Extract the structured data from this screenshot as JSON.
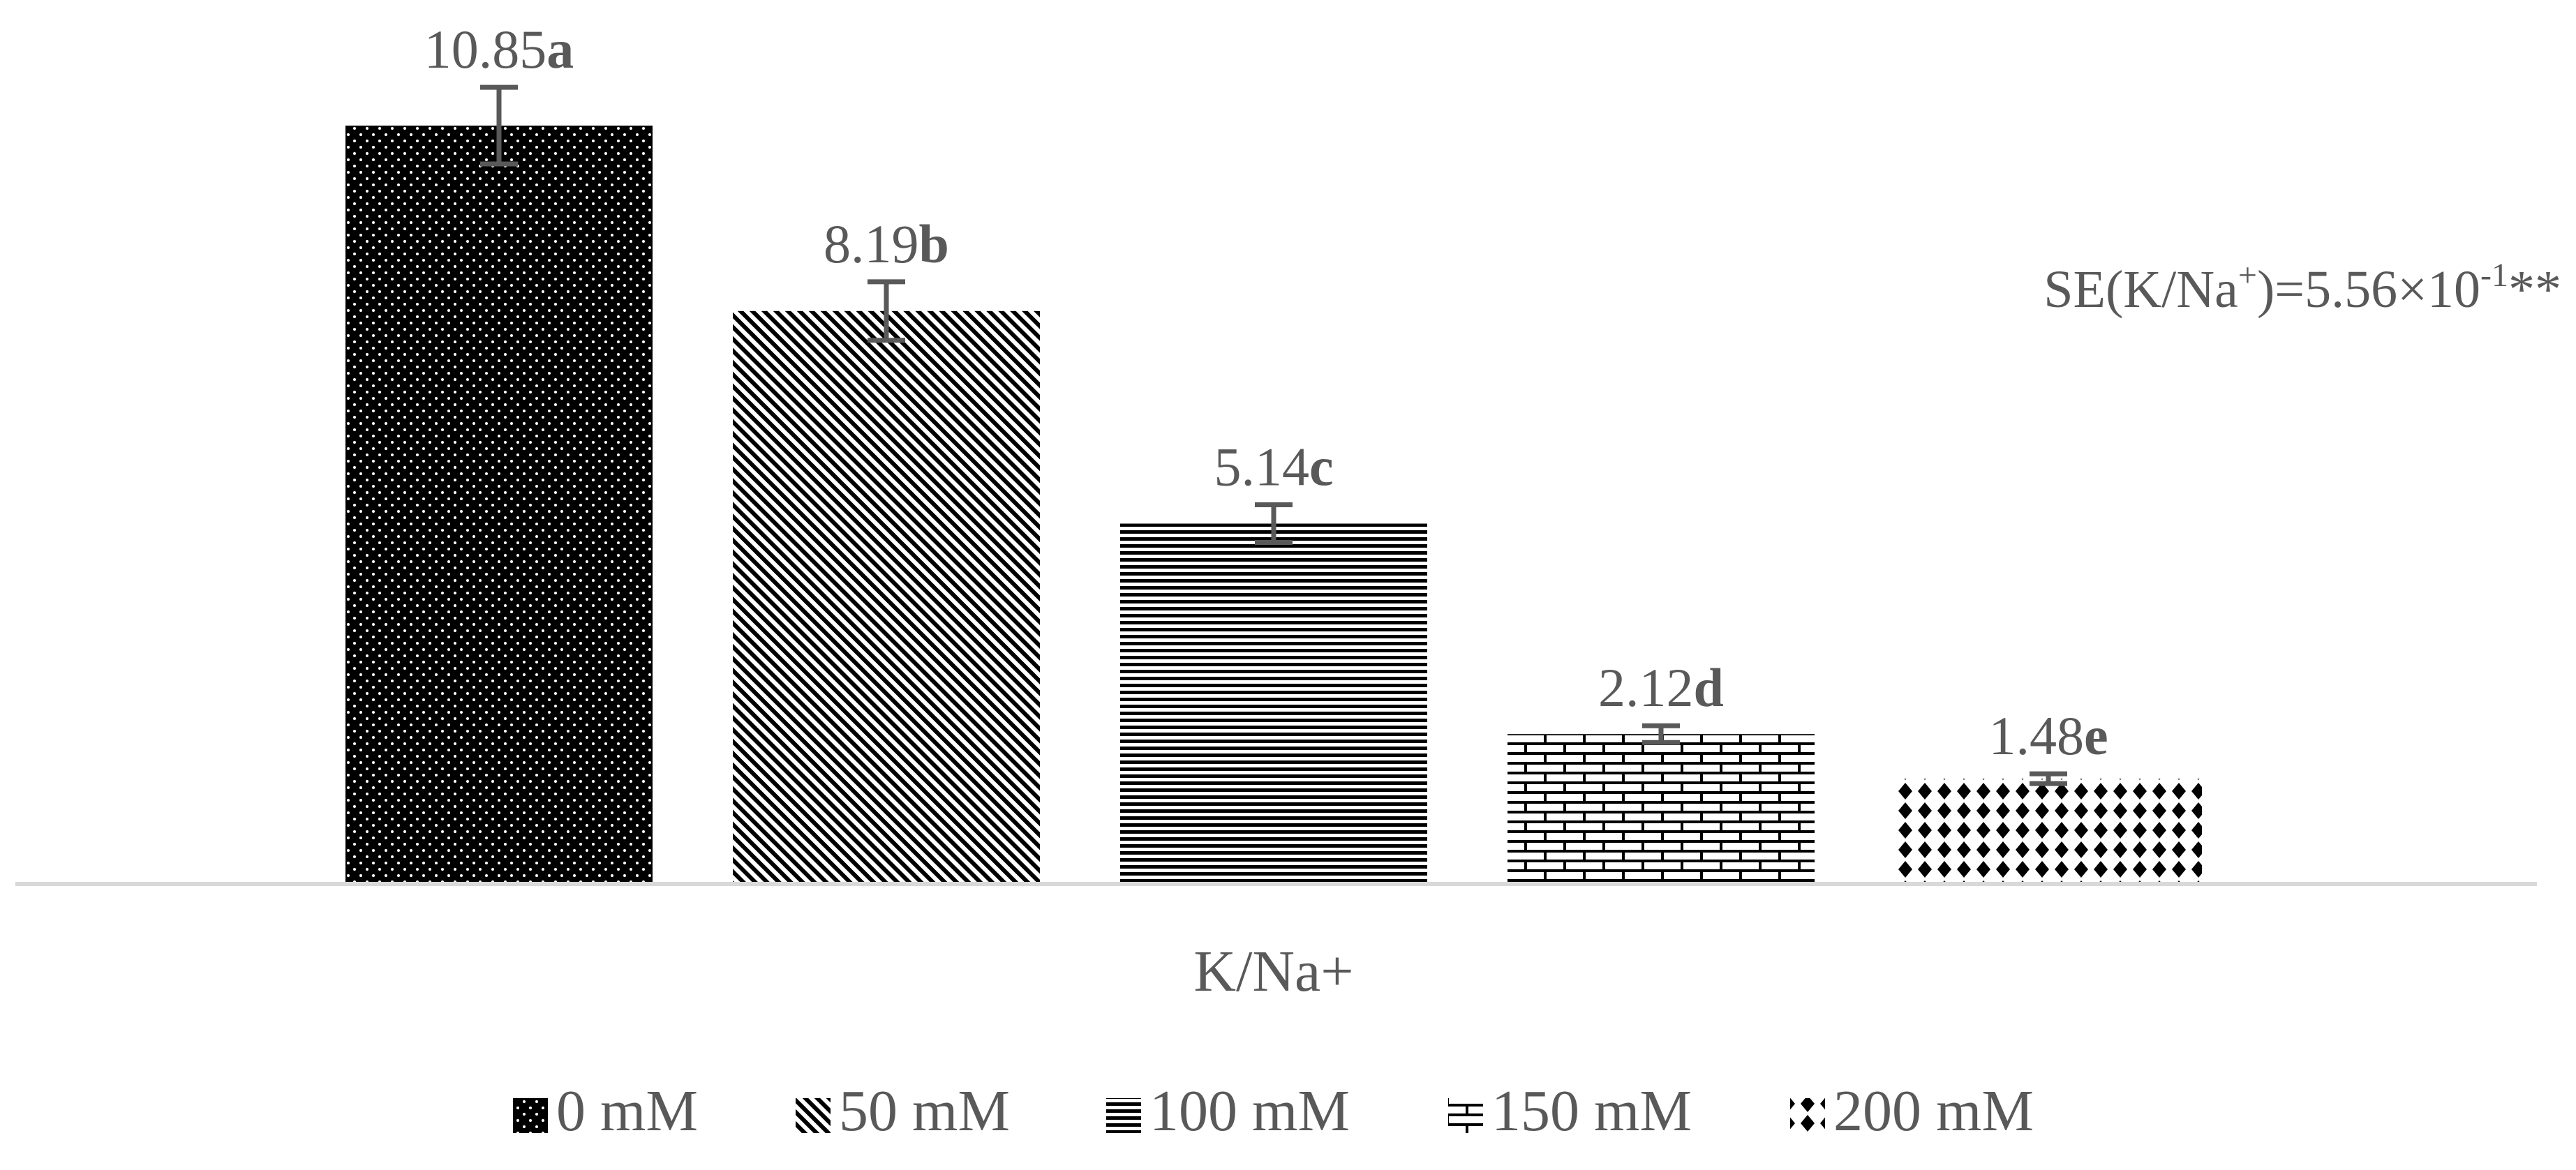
{
  "chart_data": {
    "type": "bar",
    "categories": [
      "K/Na+"
    ],
    "ylim": [
      0,
      12
    ],
    "series": [
      {
        "name": "0 mM",
        "value": 10.85,
        "error": 0.55,
        "letter": "a",
        "value_text": "10.85",
        "pattern": "dots-on-black"
      },
      {
        "name": "50 mM",
        "value": 8.19,
        "error": 0.42,
        "letter": "b",
        "value_text": "8.19",
        "pattern": "diagonal-lines"
      },
      {
        "name": "100 mM",
        "value": 5.14,
        "error": 0.27,
        "letter": "c",
        "value_text": "5.14",
        "pattern": "horizontal-lines"
      },
      {
        "name": "150 mM",
        "value": 2.12,
        "error": 0.12,
        "letter": "d",
        "value_text": "2.12",
        "pattern": "bricks"
      },
      {
        "name": "200 mM",
        "value": 1.48,
        "error": 0.07,
        "letter": "e",
        "value_text": "1.48",
        "pattern": "diamonds"
      }
    ],
    "annotation": {
      "prefix": "SE(K/Na",
      "sup1": "+",
      "middle": ")=5.56×10",
      "sup2": "-1",
      "suffix": "**"
    },
    "grid": false,
    "legend_position": "bottom",
    "colors": {
      "bar": "#000000",
      "text": "#595959",
      "axis": "#d9d9d9",
      "error": "#595959"
    }
  }
}
